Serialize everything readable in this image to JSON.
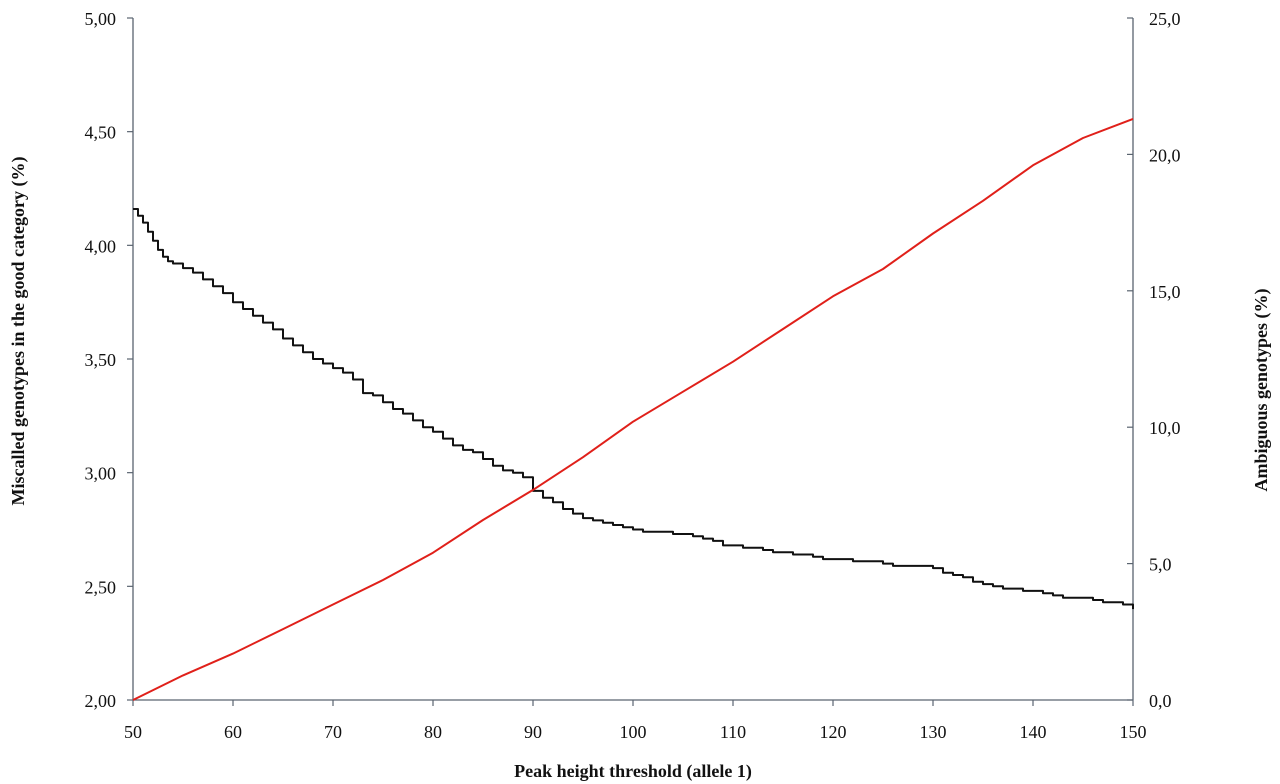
{
  "chart_data": {
    "type": "line",
    "title": "",
    "xlabel": "Peak height threshold (allele 1)",
    "ylabel_left": "Miscalled genotypes in the good category (%)",
    "ylabel_right": "Ambiguous genotypes (%)",
    "xlim": [
      50,
      150
    ],
    "ylim_left": [
      2.0,
      5.0
    ],
    "ylim_right": [
      0.0,
      25.0
    ],
    "x_ticks": [
      "50",
      "60",
      "70",
      "80",
      "90",
      "100",
      "110",
      "120",
      "130",
      "140",
      "150"
    ],
    "y_left_ticks": [
      "2,00",
      "2,50",
      "3,00",
      "3,50",
      "4,00",
      "4,50",
      "5,00"
    ],
    "y_right_ticks": [
      "0,0",
      "5,0",
      "10,0",
      "15,0",
      "20,0",
      "25,0"
    ],
    "grid": false,
    "legend": "none",
    "series": [
      {
        "axis": "left",
        "color": "#111111",
        "step": true,
        "points": [
          [
            50,
            4.16
          ],
          [
            50.5,
            4.13
          ],
          [
            51,
            4.1
          ],
          [
            51.5,
            4.06
          ],
          [
            52,
            4.02
          ],
          [
            52.5,
            3.98
          ],
          [
            53,
            3.95
          ],
          [
            53.5,
            3.93
          ],
          [
            54,
            3.92
          ],
          [
            55,
            3.9
          ],
          [
            56,
            3.88
          ],
          [
            57,
            3.85
          ],
          [
            58,
            3.82
          ],
          [
            59,
            3.79
          ],
          [
            60,
            3.75
          ],
          [
            61,
            3.72
          ],
          [
            62,
            3.69
          ],
          [
            63,
            3.66
          ],
          [
            64,
            3.63
          ],
          [
            65,
            3.59
          ],
          [
            66,
            3.56
          ],
          [
            67,
            3.53
          ],
          [
            68,
            3.5
          ],
          [
            69,
            3.48
          ],
          [
            70,
            3.46
          ],
          [
            71,
            3.44
          ],
          [
            72,
            3.41
          ],
          [
            73,
            3.35
          ],
          [
            74,
            3.34
          ],
          [
            75,
            3.31
          ],
          [
            76,
            3.28
          ],
          [
            77,
            3.26
          ],
          [
            78,
            3.23
          ],
          [
            79,
            3.2
          ],
          [
            80,
            3.18
          ],
          [
            81,
            3.15
          ],
          [
            82,
            3.12
          ],
          [
            83,
            3.1
          ],
          [
            84,
            3.09
          ],
          [
            85,
            3.06
          ],
          [
            86,
            3.03
          ],
          [
            87,
            3.01
          ],
          [
            88,
            3.0
          ],
          [
            89,
            2.98
          ],
          [
            90,
            2.92
          ],
          [
            91,
            2.89
          ],
          [
            92,
            2.87
          ],
          [
            93,
            2.84
          ],
          [
            94,
            2.82
          ],
          [
            95,
            2.8
          ],
          [
            96,
            2.79
          ],
          [
            97,
            2.78
          ],
          [
            98,
            2.77
          ],
          [
            99,
            2.76
          ],
          [
            100,
            2.75
          ],
          [
            101,
            2.74
          ],
          [
            103,
            2.74
          ],
          [
            104,
            2.73
          ],
          [
            106,
            2.72
          ],
          [
            107,
            2.71
          ],
          [
            108,
            2.7
          ],
          [
            109,
            2.68
          ],
          [
            110,
            2.68
          ],
          [
            111,
            2.67
          ],
          [
            112,
            2.67
          ],
          [
            113,
            2.66
          ],
          [
            114,
            2.65
          ],
          [
            115,
            2.65
          ],
          [
            116,
            2.64
          ],
          [
            117,
            2.64
          ],
          [
            118,
            2.63
          ],
          [
            119,
            2.62
          ],
          [
            120,
            2.62
          ],
          [
            121,
            2.62
          ],
          [
            122,
            2.61
          ],
          [
            124,
            2.61
          ],
          [
            125,
            2.6
          ],
          [
            126,
            2.59
          ],
          [
            130,
            2.58
          ],
          [
            131,
            2.56
          ],
          [
            132,
            2.55
          ],
          [
            133,
            2.54
          ],
          [
            134,
            2.52
          ],
          [
            135,
            2.51
          ],
          [
            136,
            2.5
          ],
          [
            137,
            2.49
          ],
          [
            139,
            2.48
          ],
          [
            141,
            2.47
          ],
          [
            142,
            2.46
          ],
          [
            143,
            2.45
          ],
          [
            146,
            2.44
          ],
          [
            147,
            2.43
          ],
          [
            149,
            2.42
          ],
          [
            150,
            2.4
          ]
        ]
      },
      {
        "axis": "right",
        "color": "#e0201a",
        "step": false,
        "points": [
          [
            50,
            0.0
          ],
          [
            55,
            0.9
          ],
          [
            60,
            1.7
          ],
          [
            65,
            2.6
          ],
          [
            70,
            3.5
          ],
          [
            75,
            4.4
          ],
          [
            80,
            5.4
          ],
          [
            85,
            6.6
          ],
          [
            90,
            7.7
          ],
          [
            95,
            8.9
          ],
          [
            100,
            10.2
          ],
          [
            105,
            11.3
          ],
          [
            110,
            12.4
          ],
          [
            115,
            13.6
          ],
          [
            120,
            14.8
          ],
          [
            125,
            15.8
          ],
          [
            130,
            17.1
          ],
          [
            135,
            18.3
          ],
          [
            140,
            19.6
          ],
          [
            145,
            20.6
          ],
          [
            150,
            21.3
          ]
        ]
      }
    ]
  }
}
